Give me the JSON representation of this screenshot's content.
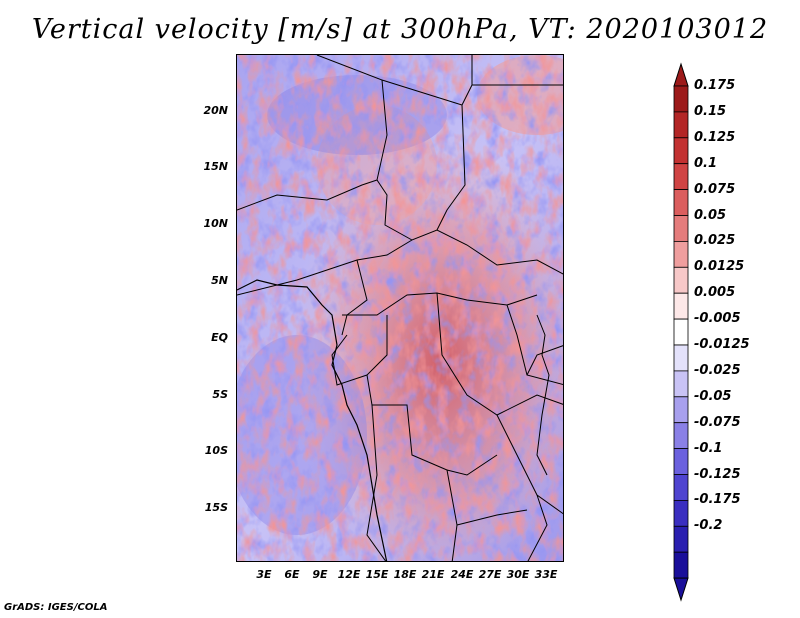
{
  "title": "Vertical velocity [m/s] at 300hPa, VT: 2020103012",
  "credit": "GrADS: IGES/COLA",
  "lat_labels": [
    "20N",
    "15N",
    "10N",
    "5N",
    "EQ",
    "5S",
    "10S",
    "15S"
  ],
  "lon_labels": [
    "3E",
    "6E",
    "9E",
    "12E",
    "15E",
    "18E",
    "21E",
    "24E",
    "27E",
    "30E",
    "33E"
  ],
  "colorbar": {
    "levels": [
      "0.175",
      "0.15",
      "0.125",
      "0.1",
      "0.075",
      "0.05",
      "0.025",
      "0.0125",
      "0.005",
      "-0.005",
      "-0.0125",
      "-0.025",
      "-0.05",
      "-0.075",
      "-0.1",
      "-0.125",
      "-0.175",
      "-0.2"
    ],
    "colors": [
      "#9c1a1a",
      "#b32626",
      "#c33232",
      "#d04444",
      "#db5e5e",
      "#e57c7c",
      "#ef9e9e",
      "#f7c8c8",
      "#fde8e8",
      "#ffffff",
      "#e4e2fb",
      "#c9c3f5",
      "#a8a0ee",
      "#8a80e6",
      "#6b61de",
      "#4f44d0",
      "#3a2ec0",
      "#2a1fb0",
      "#1a0f9a"
    ],
    "top_cap": "#9c1a1a",
    "bottom_cap": "#1a0f9a"
  }
}
